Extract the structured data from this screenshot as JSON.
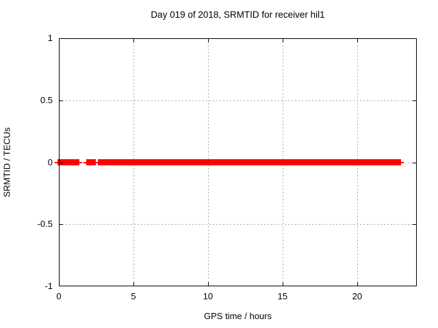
{
  "title": "Day 019 of 2018, SRMTID for receiver hil1",
  "axes": {
    "xlabel": "GPS time / hours",
    "ylabel": "SRMTID / TECUs"
  },
  "colors": {
    "marker": "#ff0000",
    "grid": "#a8a8a8",
    "border": "#000000",
    "background": "#ffffff",
    "text": "#000000"
  },
  "chart_data": {
    "type": "scatter",
    "title": "Day 019 of 2018, SRMTID for receiver hil1",
    "xlabel": "GPS time / hours",
    "ylabel": "SRMTID / TECUs",
    "xlim": [
      0,
      24
    ],
    "ylim": [
      -1,
      1
    ],
    "xticks": [
      {
        "value": 0,
        "label": "0"
      },
      {
        "value": 5,
        "label": "5"
      },
      {
        "value": 10,
        "label": "10"
      },
      {
        "value": 15,
        "label": "15"
      },
      {
        "value": 20,
        "label": "20"
      }
    ],
    "yticks": [
      {
        "value": 1,
        "label": "1"
      },
      {
        "value": 0.5,
        "label": "0.5"
      },
      {
        "value": 0,
        "label": "0"
      },
      {
        "value": -0.5,
        "label": "-0.5"
      },
      {
        "value": -1,
        "label": "-1"
      }
    ],
    "grid": true,
    "legend": "none",
    "series": [
      {
        "name": "SRMTID",
        "marker": "plus",
        "color": "#ff0000",
        "y_value": 0,
        "segments_hours": [
          [
            0,
            1.3
          ],
          [
            1.95,
            2.4
          ],
          [
            2.7,
            2.9
          ],
          [
            3.05,
            3.3
          ],
          [
            3.35,
            3.9
          ],
          [
            4.0,
            4.55
          ],
          [
            4.6,
            5.65
          ],
          [
            5.75,
            6.15
          ],
          [
            6.25,
            17.3
          ],
          [
            17.5,
            18.5
          ],
          [
            18.65,
            18.85
          ],
          [
            18.95,
            22.85
          ]
        ]
      }
    ]
  }
}
